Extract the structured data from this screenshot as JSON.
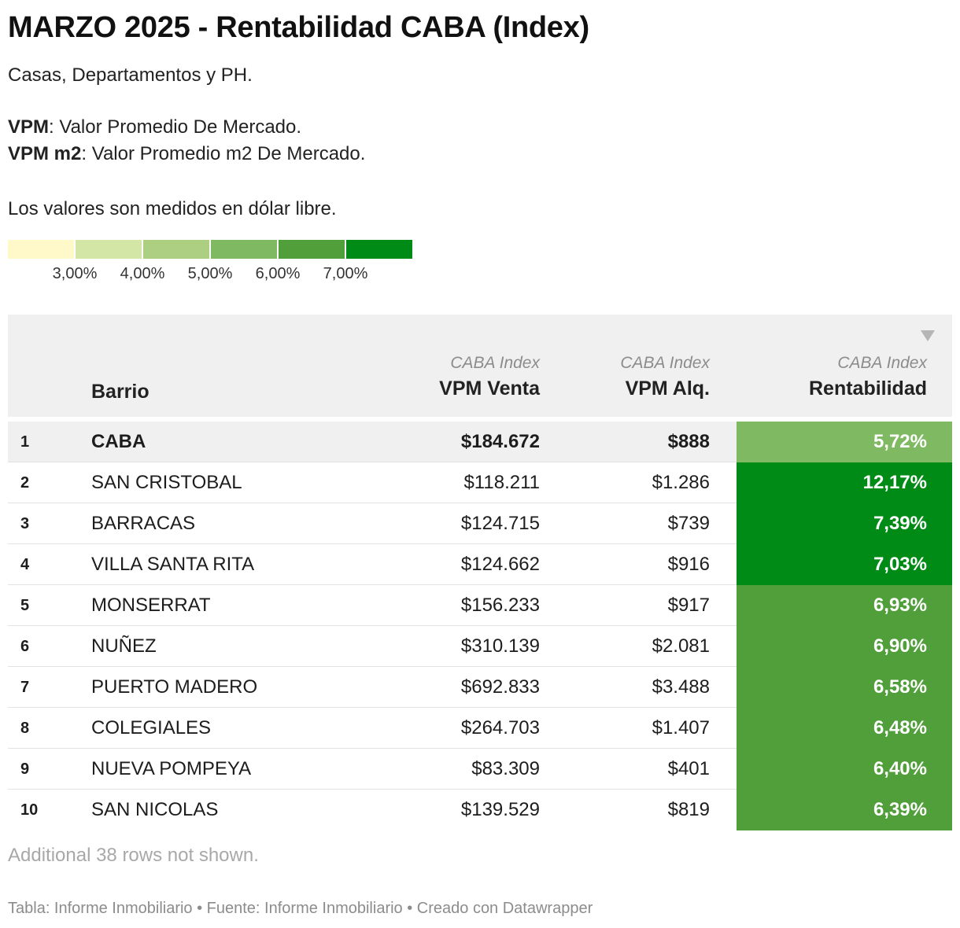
{
  "title": "MARZO 2025 - Rentabilidad CABA (Index)",
  "description": {
    "line1": "Casas, Departamentos y PH.",
    "vpm_term": "VPM",
    "vpm_def": ": Valor Promedio De Mercado.",
    "vpm_m2_term": "VPM m2",
    "vpm_m2_def": ": Valor Promedio m2 De Mercado.",
    "currency_note": "Los valores son medidos en dólar libre."
  },
  "legend": {
    "colors": [
      "#fff9c9",
      "#d4e6a6",
      "#accf82",
      "#7fba62",
      "#519f3b",
      "#008b16"
    ],
    "ticks": [
      "3,00%",
      "4,00%",
      "5,00%",
      "6,00%",
      "7,00%"
    ]
  },
  "colors": {
    "header_bg": "#f0f0f0",
    "rent_low": "#7fba62",
    "rent_mid": "#519f3b",
    "rent_high": "#008b16"
  },
  "chart_data": {
    "type": "table",
    "columns": [
      {
        "key": "rank",
        "label": ""
      },
      {
        "key": "barrio",
        "label": "Barrio",
        "sub": ""
      },
      {
        "key": "venta",
        "label": "VPM Venta",
        "sub": "CABA Index"
      },
      {
        "key": "alq",
        "label": "VPM Alq.",
        "sub": "CABA Index"
      },
      {
        "key": "rent",
        "label": "Rentabilidad",
        "sub": "CABA Index"
      }
    ],
    "sort": {
      "column": "rent",
      "direction": "descending"
    },
    "rows": [
      {
        "rank": "1",
        "barrio": "CABA",
        "venta": "$184.672",
        "alq": "$888",
        "rent": "5,72%",
        "rent_value": 5.72
      },
      {
        "rank": "2",
        "barrio": "SAN CRISTOBAL",
        "venta": "$118.211",
        "alq": "$1.286",
        "rent": "12,17%",
        "rent_value": 12.17
      },
      {
        "rank": "3",
        "barrio": "BARRACAS",
        "venta": "$124.715",
        "alq": "$739",
        "rent": "7,39%",
        "rent_value": 7.39
      },
      {
        "rank": "4",
        "barrio": "VILLA SANTA RITA",
        "venta": "$124.662",
        "alq": "$916",
        "rent": "7,03%",
        "rent_value": 7.03
      },
      {
        "rank": "5",
        "barrio": "MONSERRAT",
        "venta": "$156.233",
        "alq": "$917",
        "rent": "6,93%",
        "rent_value": 6.93
      },
      {
        "rank": "6",
        "barrio": "NUÑEZ",
        "venta": "$310.139",
        "alq": "$2.081",
        "rent": "6,90%",
        "rent_value": 6.9
      },
      {
        "rank": "7",
        "barrio": "PUERTO MADERO",
        "venta": "$692.833",
        "alq": "$3.488",
        "rent": "6,58%",
        "rent_value": 6.58
      },
      {
        "rank": "8",
        "barrio": "COLEGIALES",
        "venta": "$264.703",
        "alq": "$1.407",
        "rent": "6,48%",
        "rent_value": 6.48
      },
      {
        "rank": "9",
        "barrio": "NUEVA POMPEYA",
        "venta": "$83.309",
        "alq": "$401",
        "rent": "6,40%",
        "rent_value": 6.4
      },
      {
        "rank": "10",
        "barrio": "SAN NICOLAS",
        "venta": "$139.529",
        "alq": "$819",
        "rent": "6,39%",
        "rent_value": 6.39
      }
    ]
  },
  "note": "Additional 38 rows not shown.",
  "footer": "Tabla: Informe Inmobiliario • Fuente: Informe Inmobiliario • Creado con Datawrapper"
}
